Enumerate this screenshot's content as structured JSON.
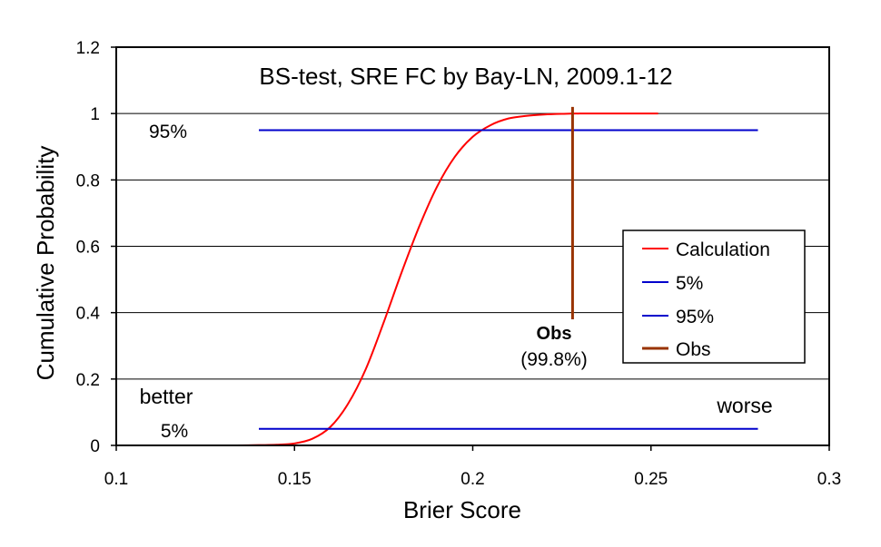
{
  "chart_data": {
    "type": "line",
    "title": "BS-test, SRE FC by Bay-LN, 2009.1-12",
    "xlabel": "Brier Score",
    "ylabel": "Cumulative Probability",
    "xlim": [
      0.1,
      0.3
    ],
    "ylim": [
      0,
      1.2
    ],
    "x_ticks": [
      "0.1",
      "0.15",
      "0.2",
      "0.25",
      "0.3"
    ],
    "y_ticks": [
      "0",
      "0.2",
      "0.4",
      "0.6",
      "0.8",
      "1",
      "1.2"
    ],
    "grid": "horizontal",
    "legend_position": "right",
    "series": [
      {
        "name": "Calculation",
        "color": "#ff0000",
        "x": [
          0.1,
          0.13,
          0.14,
          0.145,
          0.15,
          0.155,
          0.16,
          0.165,
          0.17,
          0.175,
          0.18,
          0.185,
          0.19,
          0.195,
          0.2,
          0.205,
          0.21,
          0.215,
          0.22,
          0.225,
          0.23,
          0.24,
          0.252
        ],
        "y": [
          0.0,
          0.0,
          0.001,
          0.002,
          0.006,
          0.02,
          0.055,
          0.125,
          0.23,
          0.37,
          0.52,
          0.66,
          0.78,
          0.87,
          0.93,
          0.965,
          0.985,
          0.993,
          0.997,
          0.999,
          1.0,
          1.0,
          1.0
        ]
      },
      {
        "name": "5%",
        "color": "#0000cc",
        "x": [
          0.14,
          0.28
        ],
        "y": [
          0.05,
          0.05
        ]
      },
      {
        "name": "95%",
        "color": "#0000cc",
        "x": [
          0.14,
          0.28
        ],
        "y": [
          0.95,
          0.95
        ]
      },
      {
        "name": "Obs",
        "color": "#993300",
        "x": [
          0.228,
          0.228
        ],
        "y": [
          0.38,
          1.02
        ]
      }
    ],
    "annotations": {
      "label_95": "95%",
      "label_5": "5%",
      "better": "better",
      "worse": "worse",
      "obs_label": "Obs",
      "obs_value": "(99.8%)"
    }
  }
}
